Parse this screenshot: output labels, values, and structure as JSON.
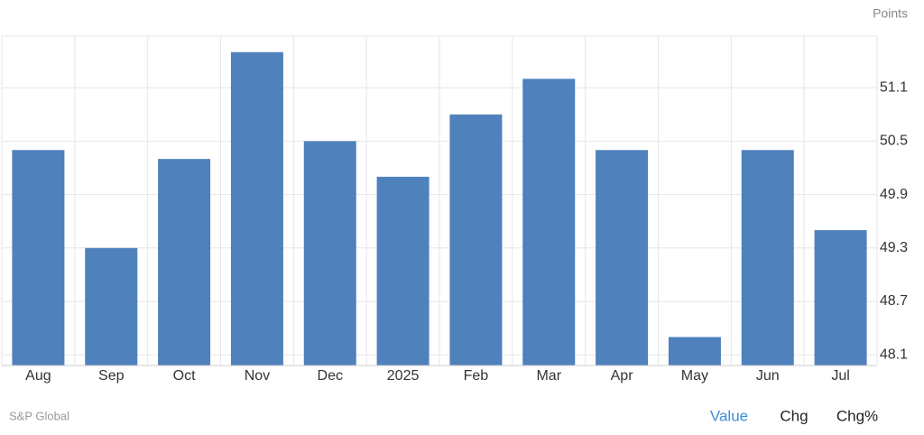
{
  "chart_data": {
    "type": "bar",
    "unit_label": "Points",
    "categories": [
      "Aug",
      "Sep",
      "Oct",
      "Nov",
      "Dec",
      "2025",
      "Feb",
      "Mar",
      "Apr",
      "May",
      "Jun",
      "Jul"
    ],
    "values": [
      50.4,
      49.3,
      50.3,
      51.5,
      50.5,
      50.1,
      50.8,
      51.2,
      50.4,
      48.3,
      50.4,
      49.5
    ],
    "color": "#4f81bd",
    "ylim": [
      47.98,
      51.68
    ],
    "yticks": [
      48.1,
      48.7,
      49.3,
      49.9,
      50.5,
      51.1
    ],
    "grid": true
  },
  "source": "S&P Global",
  "controls": [
    "Value",
    "Chg",
    "Chg%"
  ]
}
